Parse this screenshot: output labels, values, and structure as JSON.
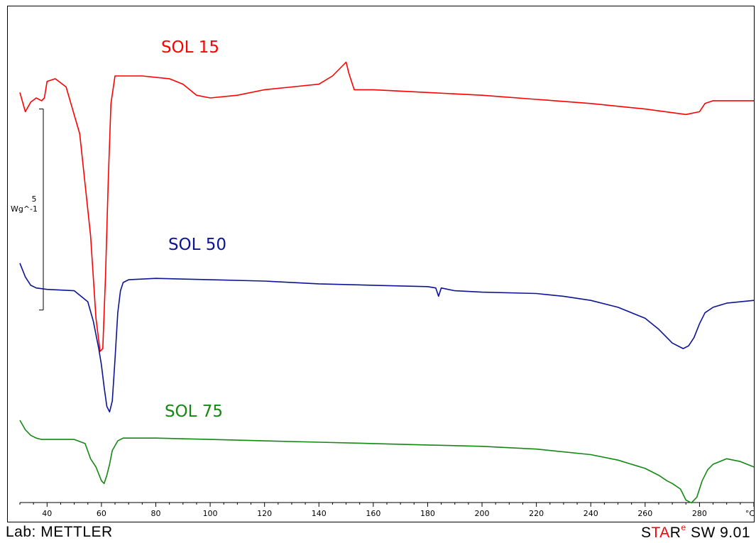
{
  "footer": {
    "lab": "Lab: METTLER",
    "brand_s": "S",
    "brand_t": "T",
    "brand_a": "A",
    "brand_r": "R",
    "brand_e": "e",
    "version": " SW 9.01"
  },
  "chart_data": {
    "type": "line",
    "xlabel": "°C",
    "x_ticks": [
      40,
      60,
      80,
      100,
      120,
      140,
      160,
      180,
      200,
      220,
      240,
      260,
      280
    ],
    "xlim": [
      30,
      300
    ],
    "scale_bar": {
      "value": "5",
      "unit": "Wg^-1",
      "magnitude": 5
    },
    "ylim": [
      -14.5,
      3.8
    ],
    "series": [
      {
        "name": "SOL 15",
        "color": "#ff0000",
        "x": [
          30,
          32,
          34,
          36,
          38,
          39,
          40,
          43,
          47,
          52,
          56,
          58,
          59.5,
          60.5,
          61.5,
          62.5,
          63.5,
          65,
          68,
          75,
          85,
          90,
          95,
          100,
          110,
          120,
          130,
          140,
          145,
          149,
          150,
          151,
          153,
          160,
          180,
          200,
          220,
          240,
          260,
          275,
          280,
          282,
          285,
          300
        ],
        "y": [
          0.7,
          0.0,
          0.35,
          0.5,
          0.4,
          0.5,
          1.1,
          1.2,
          0.9,
          -0.8,
          -4.5,
          -7.5,
          -8.7,
          -8.6,
          -6.0,
          -2.5,
          0.3,
          1.3,
          1.3,
          1.3,
          1.2,
          1.0,
          0.6,
          0.5,
          0.6,
          0.8,
          0.9,
          1.0,
          1.3,
          1.7,
          1.8,
          1.4,
          0.8,
          0.8,
          0.7,
          0.6,
          0.45,
          0.3,
          0.1,
          -0.1,
          0.0,
          0.3,
          0.4,
          0.4
        ]
      },
      {
        "name": "SOL 50",
        "color": "#0b1495",
        "x": [
          30,
          32,
          34,
          36,
          40,
          50,
          55,
          57,
          59,
          60,
          61,
          62,
          63,
          64,
          65,
          66,
          67,
          68,
          70,
          80,
          100,
          120,
          140,
          160,
          180,
          183,
          184,
          185,
          190,
          200,
          220,
          230,
          240,
          250,
          260,
          265,
          270,
          274,
          276,
          278,
          280,
          282,
          285,
          290,
          300
        ],
        "y": [
          -5.5,
          -6.0,
          -6.3,
          -6.4,
          -6.45,
          -6.5,
          -6.9,
          -7.6,
          -8.6,
          -9.2,
          -10.0,
          -10.7,
          -10.9,
          -10.5,
          -9.0,
          -7.3,
          -6.5,
          -6.2,
          -6.1,
          -6.05,
          -6.1,
          -6.15,
          -6.25,
          -6.3,
          -6.35,
          -6.4,
          -6.7,
          -6.4,
          -6.5,
          -6.55,
          -6.6,
          -6.7,
          -6.85,
          -7.1,
          -7.5,
          -7.9,
          -8.4,
          -8.6,
          -8.5,
          -8.2,
          -7.7,
          -7.3,
          -7.1,
          -6.95,
          -6.85
        ]
      },
      {
        "name": "SOL 75",
        "color": "#138813",
        "x": [
          30,
          32,
          34,
          36,
          38,
          40,
          50,
          54,
          56,
          58,
          60,
          61,
          62,
          63,
          64,
          66,
          68,
          70,
          80,
          100,
          120,
          140,
          160,
          180,
          200,
          220,
          240,
          250,
          260,
          265,
          268,
          270,
          273,
          275,
          277,
          279,
          281,
          283,
          285,
          290,
          295,
          300
        ],
        "y": [
          -11.2,
          -11.55,
          -11.75,
          -11.85,
          -11.9,
          -11.9,
          -11.9,
          -12.05,
          -12.6,
          -12.9,
          -13.4,
          -13.5,
          -13.2,
          -12.8,
          -12.3,
          -11.95,
          -11.85,
          -11.85,
          -11.85,
          -11.9,
          -11.95,
          -12.0,
          -12.05,
          -12.1,
          -12.15,
          -12.25,
          -12.45,
          -12.65,
          -12.95,
          -13.2,
          -13.4,
          -13.5,
          -13.7,
          -14.1,
          -14.2,
          -14.0,
          -13.4,
          -13.0,
          -12.8,
          -12.6,
          -12.7,
          -12.9
        ]
      }
    ]
  }
}
